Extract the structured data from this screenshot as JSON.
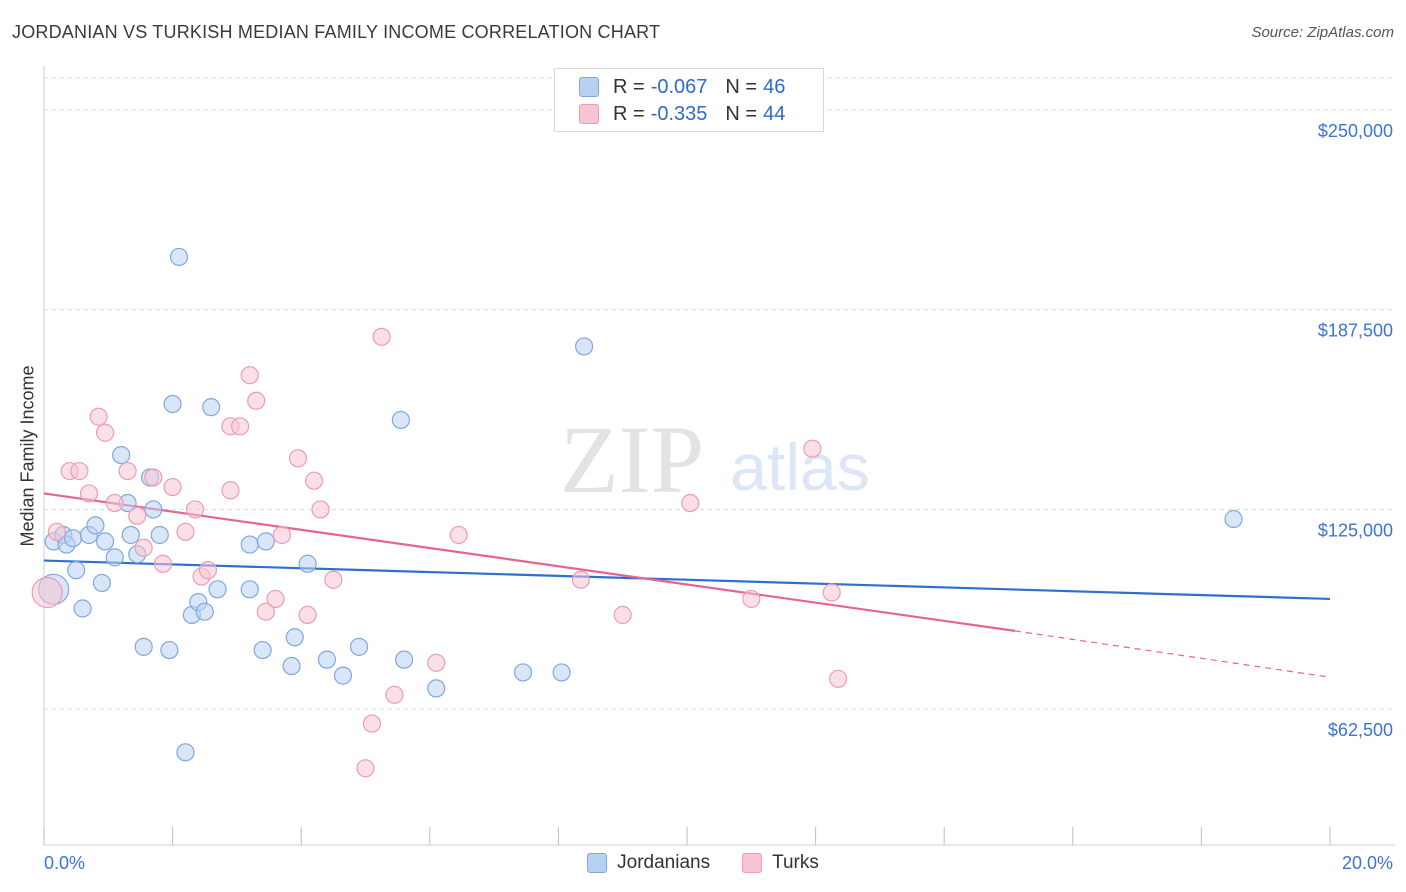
{
  "title": "JORDANIAN VS TURKISH MEDIAN FAMILY INCOME CORRELATION CHART",
  "source": "Source: ZipAtlas.com",
  "watermark": {
    "zip": "ZIP",
    "atlas": "atlas"
  },
  "legend_top": [
    {
      "r_label": "R = ",
      "r_value": "-0.067",
      "n_label": "N = ",
      "n_value": "46"
    },
    {
      "r_label": "R = ",
      "r_value": "-0.335",
      "n_label": "N = ",
      "n_value": "44"
    }
  ],
  "legend_bottom": [
    "Jordanians",
    "Turks"
  ],
  "colors": {
    "jordanians_fill": "#b8d1f3",
    "jordanians_stroke": "#7fa8e0",
    "jordanians_line": "#2e6fcf",
    "turks_fill": "#f7c4d4",
    "turks_stroke": "#ec9cb6",
    "turks_line": "#e5658f",
    "axis_label": "#3b74d4",
    "grid": "#d9d9d9"
  },
  "chart_data": {
    "type": "scatter",
    "ylabel": "Median Family Income",
    "xlim": [
      0,
      20
    ],
    "ylim": [
      20000,
      265000
    ],
    "x_tick_labels": [
      "0.0%",
      "20.0%"
    ],
    "y_ticks": [
      62500,
      125000,
      187500,
      250000
    ],
    "y_tick_labels": [
      "$62,500",
      "$125,000",
      "$187,500",
      "$250,000"
    ],
    "series": [
      {
        "name": "Jordanians",
        "points": [
          [
            0.15,
            100000
          ],
          [
            0.15,
            115000
          ],
          [
            0.3,
            117000
          ],
          [
            0.35,
            114000
          ],
          [
            0.45,
            116000
          ],
          [
            0.5,
            106000
          ],
          [
            0.6,
            94000
          ],
          [
            0.7,
            117000
          ],
          [
            0.8,
            120000
          ],
          [
            0.9,
            102000
          ],
          [
            0.95,
            115000
          ],
          [
            1.1,
            110000
          ],
          [
            1.2,
            142000
          ],
          [
            1.3,
            127000
          ],
          [
            1.35,
            117000
          ],
          [
            1.45,
            111000
          ],
          [
            1.55,
            82000
          ],
          [
            1.65,
            135000
          ],
          [
            1.7,
            125000
          ],
          [
            1.8,
            117000
          ],
          [
            1.95,
            81000
          ],
          [
            2.0,
            158000
          ],
          [
            2.1,
            204000
          ],
          [
            2.2,
            49000
          ],
          [
            2.3,
            92000
          ],
          [
            2.4,
            96000
          ],
          [
            2.5,
            93000
          ],
          [
            2.6,
            157000
          ],
          [
            2.7,
            100000
          ],
          [
            3.2,
            100000
          ],
          [
            3.2,
            114000
          ],
          [
            3.4,
            81000
          ],
          [
            3.45,
            115000
          ],
          [
            3.85,
            76000
          ],
          [
            3.9,
            85000
          ],
          [
            4.1,
            108000
          ],
          [
            4.4,
            78000
          ],
          [
            4.65,
            73000
          ],
          [
            4.9,
            82000
          ],
          [
            5.55,
            153000
          ],
          [
            5.6,
            78000
          ],
          [
            6.1,
            69000
          ],
          [
            7.45,
            74000
          ],
          [
            8.05,
            74000
          ],
          [
            8.4,
            176000
          ],
          [
            18.5,
            122000
          ]
        ]
      },
      {
        "name": "Turks",
        "points": [
          [
            0.05,
            99000
          ],
          [
            0.2,
            118000
          ],
          [
            0.4,
            137000
          ],
          [
            0.55,
            137000
          ],
          [
            0.7,
            130000
          ],
          [
            0.85,
            154000
          ],
          [
            0.95,
            149000
          ],
          [
            1.1,
            127000
          ],
          [
            1.3,
            137000
          ],
          [
            1.45,
            123000
          ],
          [
            1.55,
            113000
          ],
          [
            1.7,
            135000
          ],
          [
            1.85,
            108000
          ],
          [
            2.0,
            132000
          ],
          [
            2.2,
            118000
          ],
          [
            2.35,
            125000
          ],
          [
            2.45,
            104000
          ],
          [
            2.55,
            106000
          ],
          [
            2.9,
            151000
          ],
          [
            2.9,
            131000
          ],
          [
            3.05,
            151000
          ],
          [
            3.2,
            167000
          ],
          [
            3.3,
            159000
          ],
          [
            3.45,
            93000
          ],
          [
            3.6,
            97000
          ],
          [
            3.7,
            117000
          ],
          [
            3.95,
            141000
          ],
          [
            4.1,
            92000
          ],
          [
            4.2,
            134000
          ],
          [
            4.3,
            125000
          ],
          [
            4.5,
            103000
          ],
          [
            5.1,
            58000
          ],
          [
            5.25,
            179000
          ],
          [
            5.45,
            67000
          ],
          [
            5.0,
            44000
          ],
          [
            6.1,
            77000
          ],
          [
            6.45,
            117000
          ],
          [
            8.35,
            103000
          ],
          [
            9.0,
            92000
          ],
          [
            10.05,
            127000
          ],
          [
            11.0,
            97000
          ],
          [
            11.95,
            144000
          ],
          [
            12.25,
            99000
          ],
          [
            12.35,
            72000
          ]
        ]
      }
    ],
    "trendlines": [
      {
        "series": "Jordanians",
        "x": [
          0,
          20
        ],
        "y": [
          109000,
          97000
        ],
        "style": "solid"
      },
      {
        "series": "Turks",
        "x": [
          0,
          15.1
        ],
        "y": [
          130000,
          87000
        ],
        "style": "solid"
      },
      {
        "series": "Turks",
        "x": [
          15.1,
          20
        ],
        "y": [
          87000,
          72500
        ],
        "style": "dashed"
      }
    ]
  }
}
